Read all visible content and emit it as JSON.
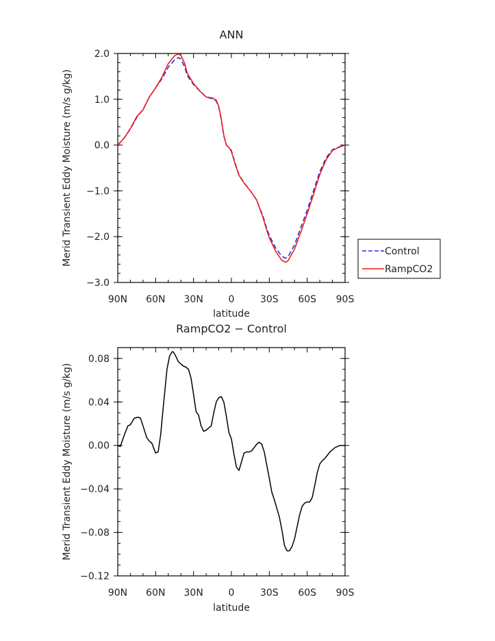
{
  "colors": {
    "control": "#2a2ad6",
    "ramp": "#e81c1c",
    "diff": "#000000",
    "axis": "#000000"
  },
  "chart_data": [
    {
      "type": "line",
      "title": "ANN",
      "xlabel": "latitude",
      "ylabel": "Merid Transient Eddy Moisture (m/s g/kg)",
      "xlim": [
        90,
        -90
      ],
      "ylim": [
        -3.0,
        2.0
      ],
      "x_ticks": [
        90,
        60,
        30,
        0,
        -30,
        -60,
        -90
      ],
      "x_tick_labels": [
        "90N",
        "60N",
        "30N",
        "0",
        "30S",
        "60S",
        "90S"
      ],
      "y_ticks": [
        2.0,
        1.0,
        0.0,
        -1.0,
        -2.0,
        -3.0
      ],
      "y_tick_labels": [
        "2.0",
        "1.0",
        "0.0",
        "−1.0",
        "−2.0",
        "−3.0"
      ],
      "legend": {
        "position": "right",
        "entries": [
          "Control",
          "RampCO2"
        ]
      },
      "series": [
        {
          "name": "Control",
          "style": "dashed",
          "x": [
            90,
            85,
            80,
            75,
            70,
            65,
            60,
            55,
            50,
            45,
            42,
            40,
            37,
            35,
            30,
            25,
            20,
            15,
            12,
            10,
            8,
            6,
            4,
            2,
            0,
            -3,
            -6,
            -10,
            -15,
            -20,
            -25,
            -28,
            -30,
            -35,
            -40,
            -43,
            -45,
            -50,
            -55,
            -60,
            -65,
            -70,
            -75,
            -80,
            -85,
            -90
          ],
          "y": [
            0.0,
            0.15,
            0.35,
            0.6,
            0.78,
            1.05,
            1.25,
            1.45,
            1.7,
            1.86,
            1.91,
            1.88,
            1.7,
            1.52,
            1.32,
            1.18,
            1.05,
            1.01,
            0.96,
            0.82,
            0.55,
            0.2,
            0.0,
            -0.05,
            -0.12,
            -0.4,
            -0.65,
            -0.82,
            -1.0,
            -1.2,
            -1.55,
            -1.82,
            -1.97,
            -2.25,
            -2.43,
            -2.47,
            -2.43,
            -2.18,
            -1.8,
            -1.42,
            -1.0,
            -0.58,
            -0.28,
            -0.1,
            -0.04,
            0.0
          ]
        },
        {
          "name": "RampCO2",
          "style": "solid",
          "x": [
            90,
            85,
            80,
            75,
            70,
            65,
            60,
            55,
            50,
            45,
            42,
            40,
            37,
            35,
            30,
            25,
            20,
            15,
            12,
            10,
            8,
            6,
            4,
            2,
            0,
            -3,
            -6,
            -10,
            -15,
            -20,
            -25,
            -28,
            -30,
            -35,
            -40,
            -43,
            -45,
            -50,
            -55,
            -60,
            -65,
            -70,
            -75,
            -80,
            -85,
            -90
          ],
          "y": [
            0.0,
            0.15,
            0.36,
            0.62,
            0.77,
            1.05,
            1.25,
            1.48,
            1.78,
            1.95,
            1.99,
            1.96,
            1.78,
            1.57,
            1.34,
            1.18,
            1.05,
            1.03,
            0.98,
            0.84,
            0.57,
            0.21,
            0.0,
            -0.05,
            -0.14,
            -0.42,
            -0.66,
            -0.83,
            -1.0,
            -1.2,
            -1.58,
            -1.86,
            -2.02,
            -2.32,
            -2.52,
            -2.56,
            -2.52,
            -2.27,
            -1.9,
            -1.5,
            -1.08,
            -0.64,
            -0.32,
            -0.12,
            -0.05,
            0.0
          ]
        }
      ]
    },
    {
      "type": "line",
      "title": "RampCO2 − Control",
      "xlabel": "latitude",
      "ylabel": "Merid Transient Eddy Moisture (m/s g/kg)",
      "xlim": [
        90,
        -90
      ],
      "ylim": [
        -0.12,
        0.09
      ],
      "x_ticks": [
        90,
        60,
        30,
        0,
        -30,
        -60,
        -90
      ],
      "x_tick_labels": [
        "90N",
        "60N",
        "30N",
        "0",
        "30S",
        "60S",
        "90S"
      ],
      "y_ticks": [
        0.08,
        0.04,
        0.0,
        -0.04,
        -0.08,
        -0.12
      ],
      "y_tick_labels": [
        "0.08",
        "0.04",
        "0.00",
        "−0.04",
        "−0.08",
        "−0.12"
      ],
      "series": [
        {
          "style": "solid",
          "x": [
            90,
            88,
            85,
            82,
            80,
            77,
            74,
            72,
            70,
            67,
            65,
            63,
            62,
            60,
            58,
            56,
            54,
            51,
            49,
            47,
            46,
            44,
            42,
            40,
            38,
            36,
            34,
            32,
            30,
            28,
            26,
            24,
            22,
            20,
            18,
            16,
            14,
            12,
            10,
            8,
            6,
            4,
            2,
            0,
            -2,
            -4,
            -6,
            -8,
            -10,
            -12,
            -14,
            -16,
            -18,
            -20,
            -22,
            -24,
            -26,
            -28,
            -30,
            -32,
            -34,
            -36,
            -38,
            -40,
            -42,
            -44,
            -46,
            -48,
            -50,
            -52,
            -54,
            -56,
            -58,
            -60,
            -62,
            -64,
            -66,
            -68,
            -70,
            -72,
            -74,
            -76,
            -78,
            -80,
            -82,
            -84,
            -86,
            -88,
            -90
          ],
          "y": [
            0.0,
            -0.001,
            0.009,
            0.018,
            0.019,
            0.025,
            0.026,
            0.025,
            0.018,
            0.007,
            0.004,
            0.002,
            -0.001,
            -0.007,
            -0.006,
            0.01,
            0.035,
            0.07,
            0.082,
            0.086,
            0.086,
            0.082,
            0.077,
            0.075,
            0.073,
            0.072,
            0.07,
            0.062,
            0.047,
            0.031,
            0.028,
            0.018,
            0.013,
            0.014,
            0.016,
            0.018,
            0.03,
            0.04,
            0.044,
            0.045,
            0.04,
            0.027,
            0.012,
            0.006,
            -0.008,
            -0.02,
            -0.023,
            -0.015,
            -0.007,
            -0.006,
            -0.006,
            -0.005,
            -0.002,
            0.001,
            0.003,
            0.001,
            -0.006,
            -0.018,
            -0.03,
            -0.043,
            -0.05,
            -0.058,
            -0.066,
            -0.078,
            -0.092,
            -0.097,
            -0.097,
            -0.093,
            -0.086,
            -0.075,
            -0.064,
            -0.056,
            -0.053,
            -0.052,
            -0.052,
            -0.048,
            -0.037,
            -0.025,
            -0.017,
            -0.014,
            -0.012,
            -0.009,
            -0.006,
            -0.004,
            -0.002,
            -0.001,
            0.0,
            0.0,
            0.0
          ]
        }
      ]
    }
  ]
}
